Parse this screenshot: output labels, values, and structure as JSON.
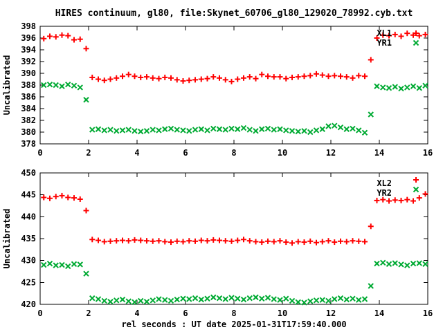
{
  "title": "HIRES continuum, gl80, file:Skynet_60706_gl80_129020_78992.cyb.txt",
  "xlabel": "rel seconds : UT date 2025-01-31T17:59:40.000",
  "colors": {
    "series_red": "#ff0000",
    "series_green": "#00aa33",
    "frame": "#000000",
    "background": "#ffffff"
  },
  "chart_data": [
    {
      "type": "scatter",
      "ylabel": "Uncalibrated",
      "ylim": [
        378,
        398
      ],
      "yticks": [
        378,
        380,
        382,
        384,
        386,
        388,
        390,
        392,
        394,
        396,
        398
      ],
      "xlim": [
        0,
        16
      ],
      "xticks": [
        0,
        2,
        4,
        6,
        8,
        10,
        12,
        14,
        16
      ],
      "grid": false,
      "legend_position": "top-right-inside",
      "x": [
        0.15,
        0.4,
        0.65,
        0.9,
        1.15,
        1.4,
        1.65,
        1.9,
        2.15,
        2.4,
        2.65,
        2.9,
        3.15,
        3.4,
        3.65,
        3.9,
        4.15,
        4.4,
        4.65,
        4.9,
        5.15,
        5.4,
        5.65,
        5.9,
        6.15,
        6.4,
        6.65,
        6.9,
        7.15,
        7.4,
        7.65,
        7.9,
        8.15,
        8.4,
        8.65,
        8.9,
        9.15,
        9.4,
        9.65,
        9.9,
        10.15,
        10.4,
        10.65,
        10.9,
        11.15,
        11.4,
        11.65,
        11.9,
        12.15,
        12.4,
        12.65,
        12.9,
        13.15,
        13.4,
        13.65,
        13.9,
        14.15,
        14.4,
        14.65,
        14.9,
        15.15,
        15.4,
        15.65,
        15.9
      ],
      "series": [
        {
          "name": "XL1",
          "marker": "plus",
          "color": "#ff0000",
          "y": [
            395.9,
            396.3,
            396.2,
            396.5,
            396.4,
            395.7,
            395.8,
            394.2,
            389.3,
            389.0,
            388.8,
            389.0,
            389.2,
            389.5,
            389.8,
            389.5,
            389.3,
            389.4,
            389.2,
            389.1,
            389.3,
            389.2,
            388.9,
            388.7,
            388.8,
            388.9,
            389.0,
            389.1,
            389.4,
            389.2,
            388.9,
            388.6,
            389.0,
            389.2,
            389.4,
            389.1,
            389.8,
            389.5,
            389.4,
            389.4,
            389.1,
            389.3,
            389.4,
            389.5,
            389.6,
            389.9,
            389.7,
            389.5,
            389.6,
            389.5,
            389.4,
            389.2,
            389.6,
            389.5,
            392.3,
            396.0,
            396.5,
            396.4,
            396.6,
            396.3,
            396.8,
            396.5,
            396.4,
            396.6
          ]
        },
        {
          "name": "YR1",
          "marker": "cross",
          "color": "#00aa33",
          "y": [
            388.0,
            388.1,
            388.0,
            387.8,
            388.1,
            387.9,
            387.6,
            385.5,
            380.4,
            380.5,
            380.3,
            380.4,
            380.2,
            380.3,
            380.4,
            380.2,
            380.1,
            380.2,
            380.4,
            380.3,
            380.5,
            380.6,
            380.4,
            380.3,
            380.2,
            380.4,
            380.5,
            380.3,
            380.6,
            380.5,
            380.4,
            380.6,
            380.5,
            380.7,
            380.4,
            380.2,
            380.5,
            380.6,
            380.4,
            380.5,
            380.3,
            380.2,
            380.1,
            380.2,
            380.0,
            380.3,
            380.5,
            381.0,
            381.1,
            380.8,
            380.5,
            380.6,
            380.3,
            379.9,
            383.0,
            387.8,
            387.6,
            387.5,
            387.7,
            387.4,
            387.6,
            387.8,
            387.5,
            387.9
          ]
        }
      ]
    },
    {
      "type": "scatter",
      "ylabel": "Uncalibrated",
      "ylim": [
        420,
        450
      ],
      "yticks": [
        420,
        425,
        430,
        435,
        440,
        445,
        450
      ],
      "xlim": [
        0,
        16
      ],
      "xticks": [
        0,
        2,
        4,
        6,
        8,
        10,
        12,
        14,
        16
      ],
      "grid": false,
      "legend_position": "top-right-inside",
      "x": [
        0.15,
        0.4,
        0.65,
        0.9,
        1.15,
        1.4,
        1.65,
        1.9,
        2.15,
        2.4,
        2.65,
        2.9,
        3.15,
        3.4,
        3.65,
        3.9,
        4.15,
        4.4,
        4.65,
        4.9,
        5.15,
        5.4,
        5.65,
        5.9,
        6.15,
        6.4,
        6.65,
        6.9,
        7.15,
        7.4,
        7.65,
        7.9,
        8.15,
        8.4,
        8.65,
        8.9,
        9.15,
        9.4,
        9.65,
        9.9,
        10.15,
        10.4,
        10.65,
        10.9,
        11.15,
        11.4,
        11.65,
        11.9,
        12.15,
        12.4,
        12.65,
        12.9,
        13.15,
        13.4,
        13.65,
        13.9,
        14.15,
        14.4,
        14.65,
        14.9,
        15.15,
        15.4,
        15.65,
        15.9
      ],
      "series": [
        {
          "name": "XL2",
          "marker": "plus",
          "color": "#ff0000",
          "y": [
            444.4,
            444.2,
            444.6,
            444.8,
            444.4,
            444.3,
            444.0,
            441.4,
            434.8,
            434.6,
            434.3,
            434.4,
            434.5,
            434.6,
            434.5,
            434.7,
            434.6,
            434.5,
            434.4,
            434.5,
            434.3,
            434.2,
            434.4,
            434.3,
            434.5,
            434.4,
            434.6,
            434.5,
            434.7,
            434.6,
            434.5,
            434.4,
            434.6,
            434.8,
            434.5,
            434.3,
            434.2,
            434.4,
            434.3,
            434.5,
            434.2,
            434.0,
            434.3,
            434.2,
            434.4,
            434.1,
            434.3,
            434.5,
            434.2,
            434.4,
            434.3,
            434.5,
            434.4,
            434.3,
            437.8,
            443.7,
            443.9,
            443.6,
            443.8,
            443.7,
            443.9,
            443.6,
            444.3,
            445.2
          ]
        },
        {
          "name": "YR2",
          "marker": "cross",
          "color": "#00aa33",
          "y": [
            429.0,
            429.3,
            428.9,
            429.0,
            428.7,
            429.2,
            429.1,
            427.0,
            421.4,
            421.2,
            420.8,
            420.6,
            420.9,
            421.1,
            420.7,
            420.5,
            420.8,
            420.6,
            420.9,
            421.2,
            421.0,
            420.8,
            421.1,
            421.3,
            421.2,
            421.4,
            421.1,
            421.3,
            421.6,
            421.4,
            421.2,
            421.5,
            421.3,
            421.1,
            421.4,
            421.6,
            421.3,
            421.5,
            421.2,
            421.0,
            421.3,
            420.8,
            420.5,
            420.4,
            420.7,
            420.9,
            421.0,
            420.8,
            421.2,
            421.4,
            421.1,
            421.3,
            421.0,
            421.2,
            424.2,
            429.3,
            429.5,
            429.2,
            429.4,
            429.1,
            428.9,
            429.3,
            429.4,
            429.2
          ]
        }
      ]
    }
  ]
}
